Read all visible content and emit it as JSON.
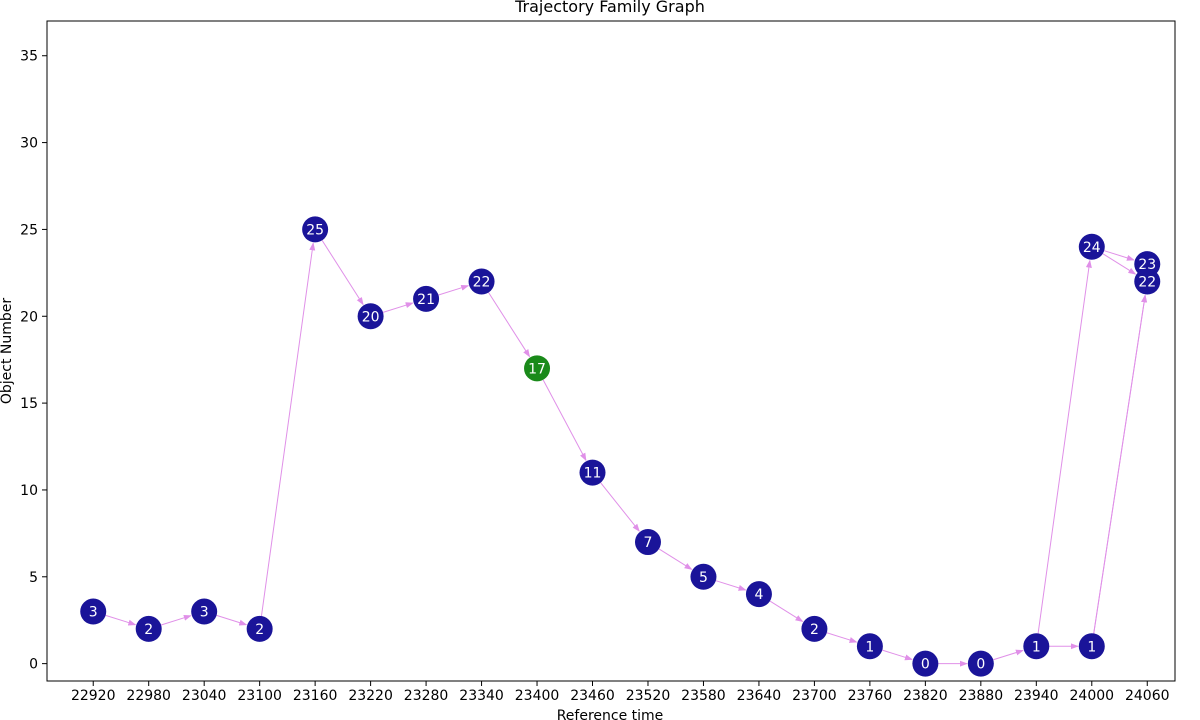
{
  "chart_data": {
    "type": "scatter",
    "title": "Trajectory Family Graph",
    "xlabel": "Reference time",
    "ylabel": "Object Number",
    "xlim": [
      22870,
      24090
    ],
    "ylim": [
      -1,
      37
    ],
    "x_ticks": [
      22920,
      22980,
      23040,
      23100,
      23160,
      23220,
      23280,
      23340,
      23400,
      23460,
      23520,
      23580,
      23640,
      23700,
      23760,
      23820,
      23880,
      23940,
      24000,
      24060
    ],
    "y_ticks": [
      0,
      5,
      10,
      15,
      20,
      25,
      30,
      35
    ],
    "grid": false,
    "colors": {
      "node": "#1a1499",
      "highlight": "#1a8a1a",
      "edge": "#e090e8",
      "label": "#ffffff"
    },
    "nodes": [
      {
        "id": "n0",
        "x": 22920,
        "y": 3,
        "label": "3"
      },
      {
        "id": "n1",
        "x": 22980,
        "y": 2,
        "label": "2"
      },
      {
        "id": "n2",
        "x": 23040,
        "y": 3,
        "label": "3"
      },
      {
        "id": "n3",
        "x": 23100,
        "y": 2,
        "label": "2"
      },
      {
        "id": "n4",
        "x": 23160,
        "y": 25,
        "label": "25"
      },
      {
        "id": "n5",
        "x": 23220,
        "y": 20,
        "label": "20"
      },
      {
        "id": "n6",
        "x": 23280,
        "y": 21,
        "label": "21"
      },
      {
        "id": "n7",
        "x": 23340,
        "y": 22,
        "label": "22"
      },
      {
        "id": "n8",
        "x": 23400,
        "y": 17,
        "label": "17",
        "highlight": true
      },
      {
        "id": "n9",
        "x": 23460,
        "y": 11,
        "label": "11"
      },
      {
        "id": "n10",
        "x": 23520,
        "y": 7,
        "label": "7"
      },
      {
        "id": "n11",
        "x": 23580,
        "y": 5,
        "label": "5"
      },
      {
        "id": "n12",
        "x": 23640,
        "y": 4,
        "label": "4"
      },
      {
        "id": "n13",
        "x": 23700,
        "y": 2,
        "label": "2"
      },
      {
        "id": "n14",
        "x": 23760,
        "y": 1,
        "label": "1"
      },
      {
        "id": "n15",
        "x": 23820,
        "y": 0,
        "label": "0"
      },
      {
        "id": "n16",
        "x": 23880,
        "y": 0,
        "label": "0"
      },
      {
        "id": "n17",
        "x": 23940,
        "y": 1,
        "label": "1"
      },
      {
        "id": "n18",
        "x": 24000,
        "y": 1,
        "label": "1"
      },
      {
        "id": "n19",
        "x": 24000,
        "y": 24,
        "label": "24"
      },
      {
        "id": "n20",
        "x": 24060,
        "y": 23,
        "label": "23"
      },
      {
        "id": "n21",
        "x": 24060,
        "y": 22,
        "label": "22"
      }
    ],
    "edges": [
      [
        "n0",
        "n1"
      ],
      [
        "n1",
        "n2"
      ],
      [
        "n2",
        "n3"
      ],
      [
        "n3",
        "n4"
      ],
      [
        "n4",
        "n5"
      ],
      [
        "n5",
        "n6"
      ],
      [
        "n6",
        "n7"
      ],
      [
        "n7",
        "n8"
      ],
      [
        "n8",
        "n9"
      ],
      [
        "n9",
        "n10"
      ],
      [
        "n10",
        "n11"
      ],
      [
        "n11",
        "n12"
      ],
      [
        "n12",
        "n13"
      ],
      [
        "n13",
        "n14"
      ],
      [
        "n14",
        "n15"
      ],
      [
        "n15",
        "n16"
      ],
      [
        "n16",
        "n17"
      ],
      [
        "n17",
        "n18"
      ],
      [
        "n17",
        "n19"
      ],
      [
        "n19",
        "n20"
      ],
      [
        "n19",
        "n21"
      ],
      [
        "n18",
        "n21"
      ],
      [
        "n18",
        "n21"
      ]
    ]
  }
}
